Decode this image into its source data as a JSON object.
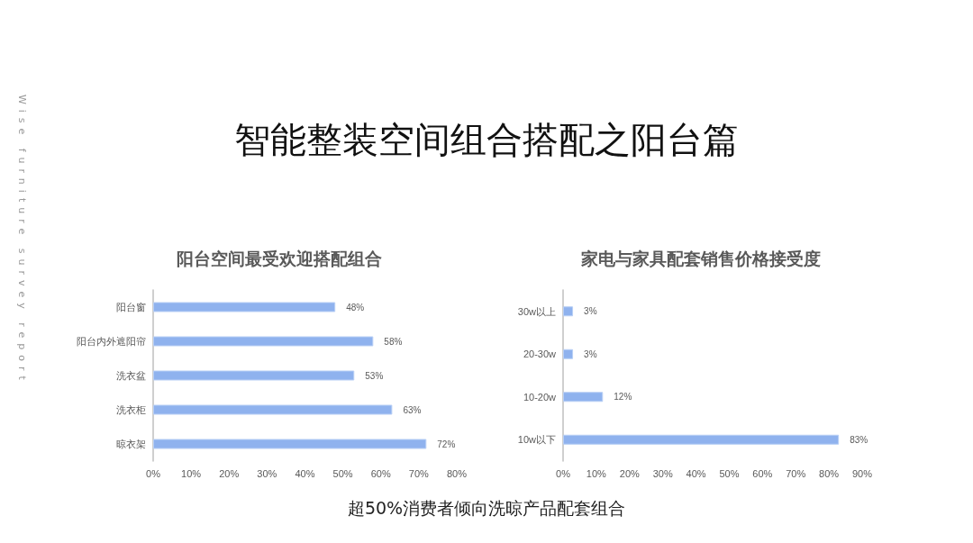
{
  "chart_data": [
    {
      "type": "other",
      "title": "智能整装空间组合搭配之阳台篇",
      "annotations": [
        "Wise furniture survey report",
        "超50%消费者倾向洗晾产品配套组合"
      ]
    },
    {
      "type": "bar",
      "orientation": "horizontal",
      "title": "阳台空间最受欢迎搭配组合",
      "categories": [
        "阳台窗",
        "阳台内外遮阳帘",
        "洗衣盆",
        "洗衣柜",
        "晾衣架"
      ],
      "values": [
        48,
        58,
        53,
        63,
        72
      ],
      "value_labels": [
        "48%",
        "58%",
        "53%",
        "63%",
        "72%"
      ],
      "color": "#8fb2ee",
      "xlim": [
        0,
        80
      ],
      "xticks": [
        {
          "value": 0,
          "label": "0%"
        },
        {
          "value": 10,
          "label": "10%"
        },
        {
          "value": 20,
          "label": "20%"
        },
        {
          "value": 30,
          "label": "30%"
        },
        {
          "value": 40,
          "label": "40%"
        },
        {
          "value": 50,
          "label": "50%"
        },
        {
          "value": 60,
          "label": "60%"
        },
        {
          "value": 70,
          "label": "70%"
        },
        {
          "value": 80,
          "label": "80%"
        }
      ],
      "grid": false
    },
    {
      "type": "bar",
      "orientation": "horizontal",
      "title": "家电与家具配套销售价格接受度",
      "categories": [
        "30w以上",
        "20-30w",
        "10-20w",
        "10w以下"
      ],
      "values": [
        3,
        3,
        12,
        83
      ],
      "value_labels": [
        "3%",
        "3%",
        "12%",
        "83%"
      ],
      "color": "#8fb2ee",
      "xlim": [
        0,
        90
      ],
      "xticks": [
        {
          "value": 0,
          "label": "0%"
        },
        {
          "value": 10,
          "label": "10%"
        },
        {
          "value": 20,
          "label": "20%"
        },
        {
          "value": 30,
          "label": "30%"
        },
        {
          "value": 40,
          "label": "40%"
        },
        {
          "value": 50,
          "label": "50%"
        },
        {
          "value": 60,
          "label": "60%"
        },
        {
          "value": 70,
          "label": "70%"
        },
        {
          "value": 80,
          "label": "80%"
        },
        {
          "value": 90,
          "label": "90%"
        }
      ],
      "grid": false
    }
  ]
}
